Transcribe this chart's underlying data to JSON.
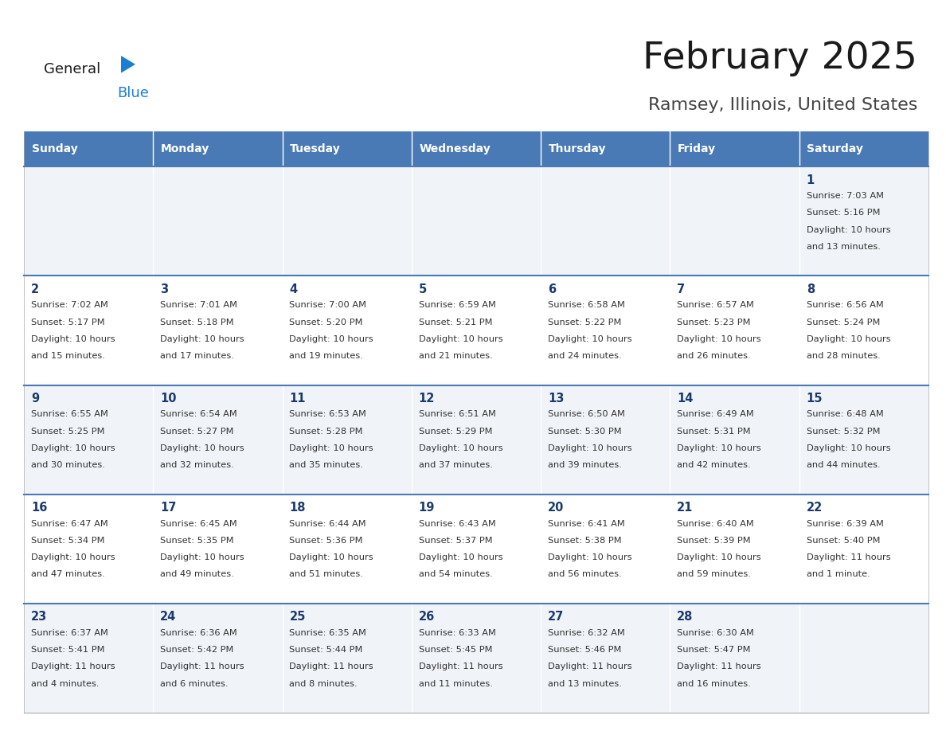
{
  "title": "February 2025",
  "subtitle": "Ramsey, Illinois, United States",
  "header_bg": "#4a7ab5",
  "header_text_color": "#FFFFFF",
  "days_of_week": [
    "Sunday",
    "Monday",
    "Tuesday",
    "Wednesday",
    "Thursday",
    "Friday",
    "Saturday"
  ],
  "cell_bg_even": "#f0f4f8",
  "cell_bg_odd": "#FFFFFF",
  "day_number_color": "#1a3a6b",
  "text_color": "#333333",
  "line_color": "#4a7ab5",
  "logo_general_color": "#222222",
  "logo_blue_color": "#1a7fd4",
  "calendar": [
    [
      null,
      null,
      null,
      null,
      null,
      null,
      {
        "day": 1,
        "sunrise": "7:03 AM",
        "sunset": "5:16 PM",
        "daylight": "10 hours\nand 13 minutes."
      }
    ],
    [
      {
        "day": 2,
        "sunrise": "7:02 AM",
        "sunset": "5:17 PM",
        "daylight": "10 hours\nand 15 minutes."
      },
      {
        "day": 3,
        "sunrise": "7:01 AM",
        "sunset": "5:18 PM",
        "daylight": "10 hours\nand 17 minutes."
      },
      {
        "day": 4,
        "sunrise": "7:00 AM",
        "sunset": "5:20 PM",
        "daylight": "10 hours\nand 19 minutes."
      },
      {
        "day": 5,
        "sunrise": "6:59 AM",
        "sunset": "5:21 PM",
        "daylight": "10 hours\nand 21 minutes."
      },
      {
        "day": 6,
        "sunrise": "6:58 AM",
        "sunset": "5:22 PM",
        "daylight": "10 hours\nand 24 minutes."
      },
      {
        "day": 7,
        "sunrise": "6:57 AM",
        "sunset": "5:23 PM",
        "daylight": "10 hours\nand 26 minutes."
      },
      {
        "day": 8,
        "sunrise": "6:56 AM",
        "sunset": "5:24 PM",
        "daylight": "10 hours\nand 28 minutes."
      }
    ],
    [
      {
        "day": 9,
        "sunrise": "6:55 AM",
        "sunset": "5:25 PM",
        "daylight": "10 hours\nand 30 minutes."
      },
      {
        "day": 10,
        "sunrise": "6:54 AM",
        "sunset": "5:27 PM",
        "daylight": "10 hours\nand 32 minutes."
      },
      {
        "day": 11,
        "sunrise": "6:53 AM",
        "sunset": "5:28 PM",
        "daylight": "10 hours\nand 35 minutes."
      },
      {
        "day": 12,
        "sunrise": "6:51 AM",
        "sunset": "5:29 PM",
        "daylight": "10 hours\nand 37 minutes."
      },
      {
        "day": 13,
        "sunrise": "6:50 AM",
        "sunset": "5:30 PM",
        "daylight": "10 hours\nand 39 minutes."
      },
      {
        "day": 14,
        "sunrise": "6:49 AM",
        "sunset": "5:31 PM",
        "daylight": "10 hours\nand 42 minutes."
      },
      {
        "day": 15,
        "sunrise": "6:48 AM",
        "sunset": "5:32 PM",
        "daylight": "10 hours\nand 44 minutes."
      }
    ],
    [
      {
        "day": 16,
        "sunrise": "6:47 AM",
        "sunset": "5:34 PM",
        "daylight": "10 hours\nand 47 minutes."
      },
      {
        "day": 17,
        "sunrise": "6:45 AM",
        "sunset": "5:35 PM",
        "daylight": "10 hours\nand 49 minutes."
      },
      {
        "day": 18,
        "sunrise": "6:44 AM",
        "sunset": "5:36 PM",
        "daylight": "10 hours\nand 51 minutes."
      },
      {
        "day": 19,
        "sunrise": "6:43 AM",
        "sunset": "5:37 PM",
        "daylight": "10 hours\nand 54 minutes."
      },
      {
        "day": 20,
        "sunrise": "6:41 AM",
        "sunset": "5:38 PM",
        "daylight": "10 hours\nand 56 minutes."
      },
      {
        "day": 21,
        "sunrise": "6:40 AM",
        "sunset": "5:39 PM",
        "daylight": "10 hours\nand 59 minutes."
      },
      {
        "day": 22,
        "sunrise": "6:39 AM",
        "sunset": "5:40 PM",
        "daylight": "11 hours\nand 1 minute."
      }
    ],
    [
      {
        "day": 23,
        "sunrise": "6:37 AM",
        "sunset": "5:41 PM",
        "daylight": "11 hours\nand 4 minutes."
      },
      {
        "day": 24,
        "sunrise": "6:36 AM",
        "sunset": "5:42 PM",
        "daylight": "11 hours\nand 6 minutes."
      },
      {
        "day": 25,
        "sunrise": "6:35 AM",
        "sunset": "5:44 PM",
        "daylight": "11 hours\nand 8 minutes."
      },
      {
        "day": 26,
        "sunrise": "6:33 AM",
        "sunset": "5:45 PM",
        "daylight": "11 hours\nand 11 minutes."
      },
      {
        "day": 27,
        "sunrise": "6:32 AM",
        "sunset": "5:46 PM",
        "daylight": "11 hours\nand 13 minutes."
      },
      {
        "day": 28,
        "sunrise": "6:30 AM",
        "sunset": "5:47 PM",
        "daylight": "11 hours\nand 16 minutes."
      },
      null
    ]
  ]
}
